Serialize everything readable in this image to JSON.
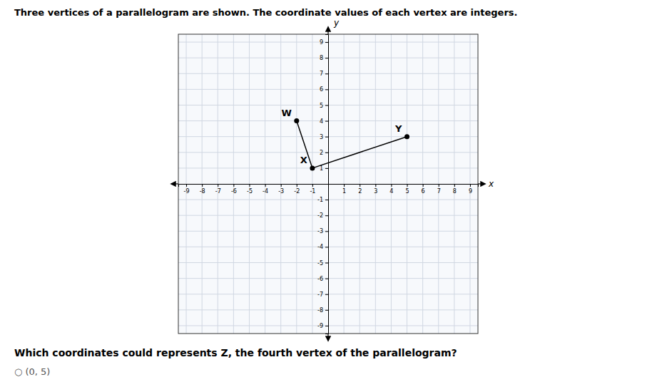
{
  "chart_data": {
    "type": "line",
    "title": "Three vertices of a parallelogram are shown. The coordinate values of each vertex are integers.",
    "question": "Which coordinates could represents Z, the fourth vertex of the parallelogram?",
    "answer": "○  (0, 5)",
    "xlabel": "x",
    "ylabel": "y",
    "xlim": [
      -9.5,
      9.5
    ],
    "ylim": [
      -9.5,
      9.5
    ],
    "xticks": [
      -9,
      -8,
      -7,
      -6,
      -5,
      -4,
      -3,
      -2,
      -1,
      1,
      2,
      3,
      4,
      5,
      6,
      7,
      8,
      9
    ],
    "yticks": [
      -9,
      -8,
      -7,
      -6,
      -5,
      -4,
      -3,
      -2,
      -1,
      1,
      2,
      3,
      4,
      5,
      6,
      7,
      8,
      9
    ],
    "grid": true,
    "series": [
      {
        "type": "line",
        "marker": "circle",
        "color": "#000000",
        "x": [
          -2,
          -1,
          5
        ],
        "values": [
          4,
          1,
          3
        ],
        "labels": [
          "W",
          "X",
          "Y"
        ]
      }
    ]
  }
}
